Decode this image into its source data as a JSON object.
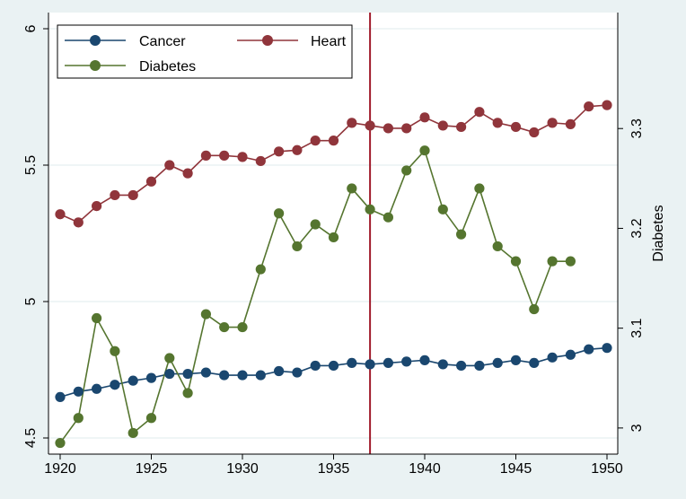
{
  "chart_data": {
    "type": "line",
    "x": [
      1920,
      1921,
      1922,
      1923,
      1924,
      1925,
      1926,
      1927,
      1928,
      1929,
      1930,
      1931,
      1932,
      1933,
      1934,
      1935,
      1936,
      1937,
      1938,
      1939,
      1940,
      1941,
      1942,
      1943,
      1944,
      1945,
      1946,
      1947,
      1948,
      1949,
      1950
    ],
    "xlim": [
      1920,
      1950
    ],
    "x_ticks": [
      1920,
      1925,
      1930,
      1935,
      1940,
      1945,
      1950
    ],
    "x_tick_labels": [
      "1920",
      "1925",
      "1930",
      "1935",
      "1940",
      "1945",
      "1950"
    ],
    "y_left": {
      "ylim": [
        4.5,
        6
      ],
      "ticks": [
        4.5,
        5,
        5.5,
        6
      ],
      "tick_labels": [
        "4.5",
        "5",
        "5.5",
        "6"
      ],
      "label": ""
    },
    "y_right": {
      "ylim": [
        2.99,
        3.4
      ],
      "ticks": [
        3.0,
        3.1,
        3.2,
        3.3
      ],
      "tick_labels": [
        "3",
        "3.1",
        "3.2",
        "3.3"
      ],
      "label": "Diabetes"
    },
    "series": [
      {
        "name": "Cancer",
        "axis": "left",
        "color": "#1a476f",
        "values": [
          4.65,
          4.67,
          4.68,
          4.695,
          4.71,
          4.72,
          4.735,
          4.735,
          4.74,
          4.73,
          4.73,
          4.73,
          4.745,
          4.74,
          4.765,
          4.765,
          4.775,
          4.77,
          4.775,
          4.78,
          4.785,
          4.77,
          4.765,
          4.765,
          4.775,
          4.785,
          4.775,
          4.795,
          4.805,
          4.825,
          4.83
        ]
      },
      {
        "name": "Heart",
        "axis": "left",
        "color": "#90353b",
        "values": [
          5.32,
          5.29,
          5.35,
          5.39,
          5.39,
          5.44,
          5.5,
          5.47,
          5.535,
          5.535,
          5.53,
          5.515,
          5.55,
          5.555,
          5.59,
          5.59,
          5.655,
          5.645,
          5.635,
          5.635,
          5.675,
          5.645,
          5.64,
          5.695,
          5.655,
          5.64,
          5.62,
          5.655,
          5.65,
          5.715,
          5.72
        ]
      },
      {
        "name": "Diabetes",
        "axis": "right",
        "color": "#55752f",
        "values": [
          2.985,
          3.01,
          3.11,
          3.077,
          2.995,
          3.01,
          3.07,
          3.035,
          3.114,
          3.101,
          3.101,
          3.159,
          3.215,
          3.182,
          3.204,
          3.191,
          3.24,
          3.219,
          3.211,
          3.258,
          3.278,
          3.219,
          3.194,
          3.24,
          3.182,
          3.167,
          3.119,
          3.167,
          3.167,
          null,
          null
        ]
      }
    ],
    "reference_line": {
      "x": 1937,
      "color": "#a01c2c"
    },
    "legend": {
      "position": "top-left",
      "columns": 2
    },
    "grid": true
  }
}
